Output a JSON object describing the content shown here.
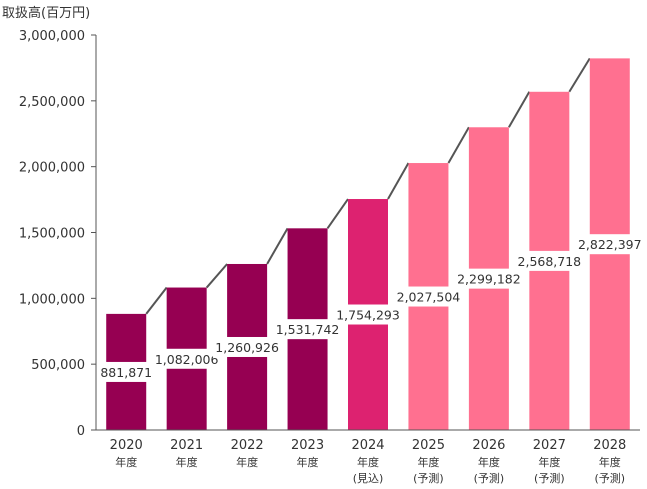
{
  "chart_data": {
    "type": "bar",
    "ylabel": "取扱高(百万円)",
    "ylim": [
      0,
      3000000
    ],
    "yticks": [
      0,
      500000,
      1000000,
      1500000,
      2000000,
      2500000,
      3000000
    ],
    "ytick_labels": [
      "0",
      "500,000",
      "1,000,000",
      "1,500,000",
      "2,000,000",
      "2,500,000",
      "3,000,000"
    ],
    "grid": false,
    "categories": [
      {
        "year": "2020",
        "line1": "年度",
        "line2": ""
      },
      {
        "year": "2021",
        "line1": "年度",
        "line2": ""
      },
      {
        "year": "2022",
        "line1": "年度",
        "line2": ""
      },
      {
        "year": "2023",
        "line1": "年度",
        "line2": ""
      },
      {
        "year": "2024",
        "line1": "年度",
        "line2": "(見込)"
      },
      {
        "year": "2025",
        "line1": "年度",
        "line2": "(予測)"
      },
      {
        "year": "2026",
        "line1": "年度",
        "line2": "(予測)"
      },
      {
        "year": "2027",
        "line1": "年度",
        "line2": "(予測)"
      },
      {
        "year": "2028",
        "line1": "年度",
        "line2": "(予測)"
      }
    ],
    "values": [
      881871,
      1082006,
      1260926,
      1531742,
      1754293,
      2027504,
      2299182,
      2568718,
      2822397
    ],
    "value_labels": [
      "881,871",
      "1,082,006",
      "1,260,926",
      "1,531,742",
      "1,754,293",
      "2,027,504",
      "2,299,182",
      "2,568,718",
      "2,822,397"
    ],
    "bar_colors": [
      "#960052",
      "#960052",
      "#960052",
      "#960052",
      "#dd2270",
      "#ff7090",
      "#ff7090",
      "#ff7090",
      "#ff7090"
    ],
    "connector_color": "#555555",
    "axis_color": "#555555"
  }
}
